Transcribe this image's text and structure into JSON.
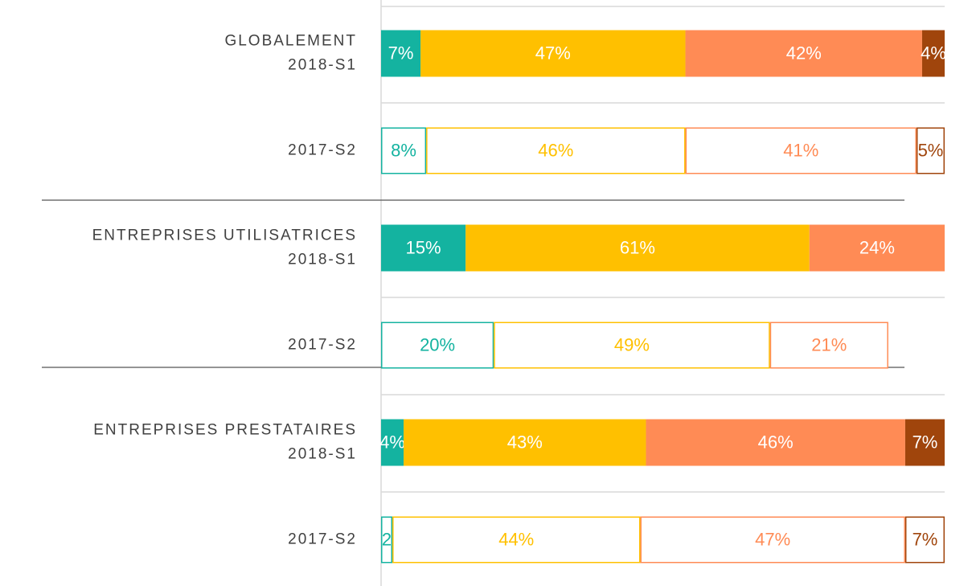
{
  "chart_data": {
    "type": "stacked_bar_horizontal",
    "categories": [
      [
        "GLOBALEMENT",
        "2018-S1"
      ],
      [
        "2017-S2"
      ],
      [
        "ENTREPRISES UTILISATRICES",
        "2018-S1"
      ],
      [
        "2017-S2"
      ],
      [
        "ENTREPRISES PRESTATAIRES",
        "2018-S1"
      ],
      [
        "2017-S2"
      ]
    ],
    "row_style": [
      "filled",
      "outline",
      "filled",
      "outline",
      "filled",
      "outline"
    ],
    "series": [
      {
        "color": "#14b3a0",
        "values": [
          7,
          8,
          15,
          20,
          4,
          2
        ],
        "value_labels": [
          "7%",
          "8%",
          "15%",
          "20%",
          "4%",
          "2"
        ]
      },
      {
        "color": "#ffc000",
        "values": [
          47,
          46,
          61,
          49,
          43,
          44
        ],
        "value_labels": [
          "47%",
          "46%",
          "61%",
          "49%",
          "43%",
          "44%"
        ]
      },
      {
        "color": "#ff8b55",
        "values": [
          42,
          41,
          24,
          21,
          46,
          47
        ],
        "value_labels": [
          "42%",
          "41%",
          "24%",
          "21%",
          "46%",
          "47%"
        ]
      },
      {
        "color": "#a0450c",
        "values": [
          4,
          5,
          null,
          null,
          7,
          7
        ],
        "value_labels": [
          "4%",
          "5%",
          null,
          null,
          "7%",
          "7%"
        ]
      }
    ],
    "xlim": [
      0,
      100
    ]
  }
}
